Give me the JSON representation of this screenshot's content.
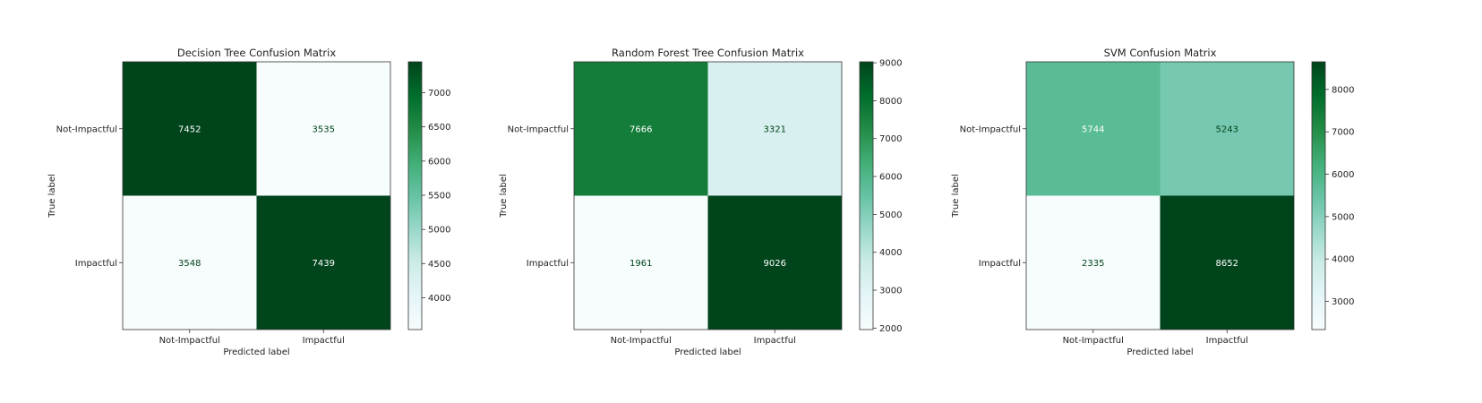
{
  "chart_data": [
    {
      "type": "heatmap",
      "title": "Decision Tree Confusion Matrix",
      "xlabel": "Predicted label",
      "ylabel": "True label",
      "x_categories": [
        "Not-Impactful",
        "Impactful"
      ],
      "y_categories": [
        "Not-Impactful",
        "Impactful"
      ],
      "values": [
        [
          7452,
          3535
        ],
        [
          3548,
          7439
        ]
      ],
      "colormap": "BuGn",
      "colorbar_range": [
        3535,
        7452
      ],
      "colorbar_ticks": [
        4000,
        4500,
        5000,
        5500,
        6000,
        6500,
        7000
      ]
    },
    {
      "type": "heatmap",
      "title": "Random Forest Tree Confusion Matrix",
      "xlabel": "Predicted label",
      "ylabel": "True label",
      "x_categories": [
        "Not-Impactful",
        "Impactful"
      ],
      "y_categories": [
        "Not-Impactful",
        "Impactful"
      ],
      "values": [
        [
          7666,
          3321
        ],
        [
          1961,
          9026
        ]
      ],
      "colormap": "BuGn",
      "colorbar_range": [
        1961,
        9026
      ],
      "colorbar_ticks": [
        2000,
        3000,
        4000,
        5000,
        6000,
        7000,
        8000,
        9000
      ]
    },
    {
      "type": "heatmap",
      "title": "SVM Confusion Matrix",
      "xlabel": "Predicted label",
      "ylabel": "True label",
      "x_categories": [
        "Not-Impactful",
        "Impactful"
      ],
      "y_categories": [
        "Not-Impactful",
        "Impactful"
      ],
      "values": [
        [
          5744,
          5243
        ],
        [
          2335,
          8652
        ]
      ],
      "colormap": "BuGn",
      "colorbar_range": [
        2335,
        8652
      ],
      "colorbar_ticks": [
        3000,
        4000,
        5000,
        6000,
        7000,
        8000
      ]
    }
  ]
}
